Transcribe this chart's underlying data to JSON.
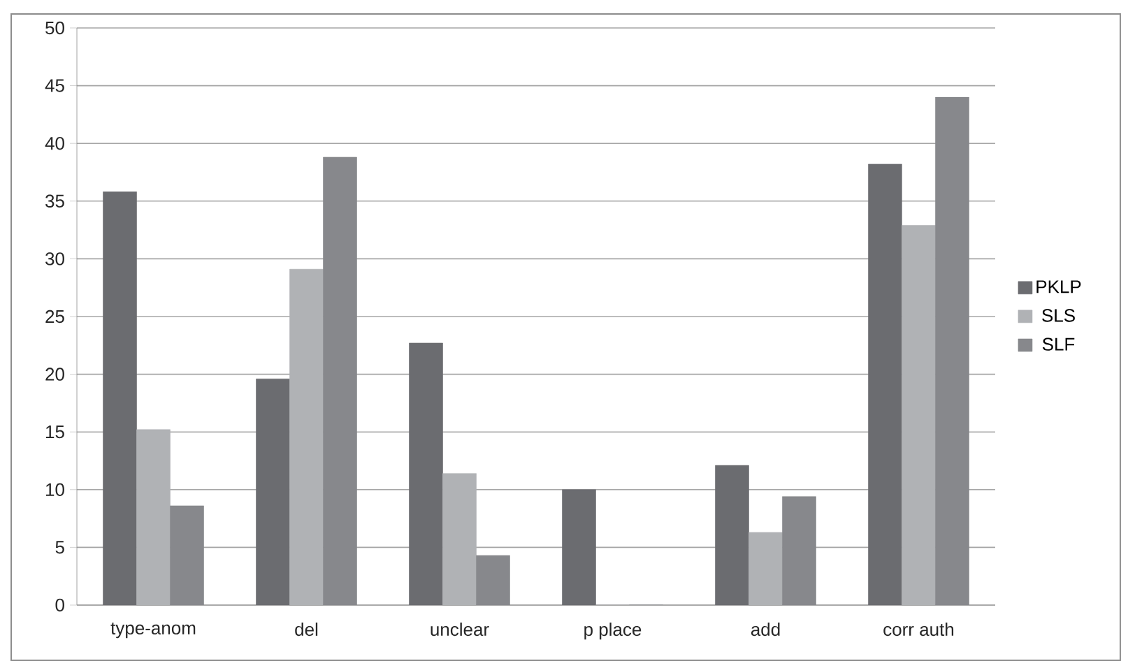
{
  "chart_data": {
    "type": "bar",
    "categories": [
      "type-anom",
      "del",
      "unclear",
      "p place",
      "add",
      "corr auth"
    ],
    "series": [
      {
        "name": "PKLP",
        "color": "#6b6c70",
        "values": [
          35.8,
          19.6,
          22.7,
          10,
          12.1,
          38.2
        ]
      },
      {
        "name": "SLS",
        "color": "#b0b2b5",
        "values": [
          15.2,
          29.1,
          11.4,
          0,
          6.3,
          32.9
        ]
      },
      {
        "name": "SLF",
        "color": "#87888c",
        "values": [
          8.6,
          38.8,
          4.3,
          0,
          9.4,
          44.0
        ]
      }
    ],
    "ylim": [
      0,
      50
    ],
    "yticks": [
      0,
      5,
      10,
      15,
      20,
      25,
      30,
      35,
      40,
      45,
      50
    ],
    "grid": "y",
    "legend": "right"
  }
}
